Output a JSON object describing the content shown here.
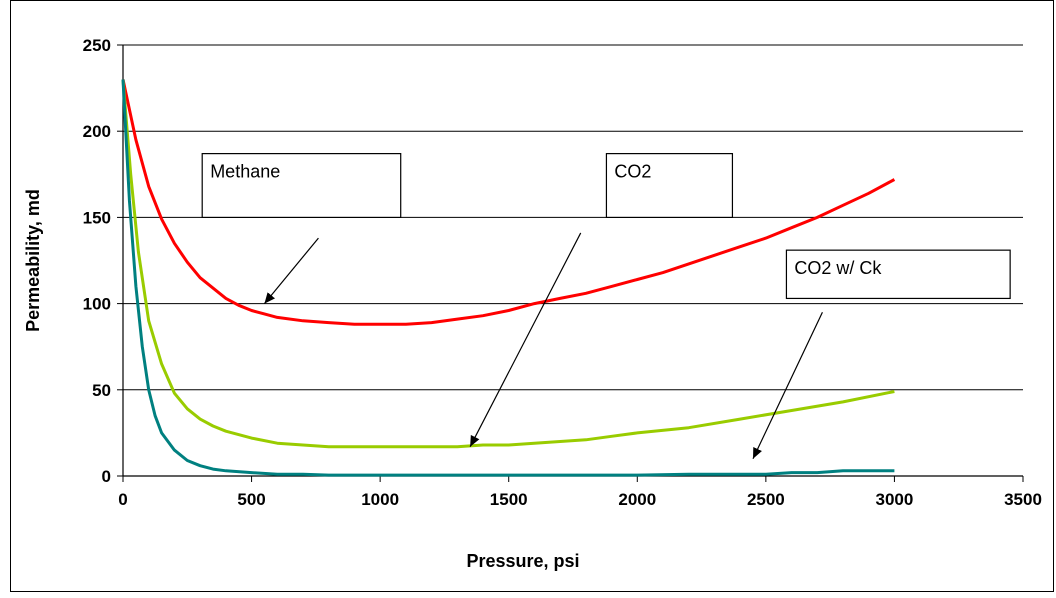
{
  "chart_data": {
    "type": "line",
    "title": "",
    "xlabel": "Pressure, psi",
    "ylabel": "Permeability, md",
    "xlim": [
      0,
      3500
    ],
    "ylim": [
      0,
      250
    ],
    "xticks": [
      0,
      500,
      1000,
      1500,
      2000,
      2500,
      3000,
      3500
    ],
    "yticks": [
      0,
      50,
      100,
      150,
      200,
      250
    ],
    "grid": "horizontal major gridlines",
    "legend": "none",
    "series": [
      {
        "name": "Methane",
        "color": "#ff0000",
        "x": [
          0,
          50,
          100,
          150,
          200,
          250,
          300,
          350,
          400,
          450,
          500,
          550,
          600,
          700,
          800,
          900,
          1000,
          1100,
          1200,
          1300,
          1400,
          1500,
          1600,
          1700,
          1800,
          1900,
          2000,
          2100,
          2200,
          2300,
          2400,
          2500,
          2600,
          2700,
          2800,
          2900,
          3000
        ],
        "y": [
          230,
          195,
          168,
          149,
          135,
          124,
          115,
          109,
          103,
          99,
          96,
          94,
          92,
          90,
          89,
          88,
          88,
          88,
          89,
          91,
          93,
          96,
          100,
          103,
          106,
          110,
          114,
          118,
          123,
          128,
          133,
          138,
          144,
          150,
          157,
          164,
          172
        ]
      },
      {
        "name": "CO2",
        "color": "#99cc00",
        "x": [
          0,
          30,
          60,
          100,
          150,
          200,
          250,
          300,
          350,
          400,
          500,
          600,
          700,
          800,
          900,
          1000,
          1100,
          1200,
          1300,
          1400,
          1500,
          1600,
          1700,
          1800,
          1900,
          2000,
          2200,
          2400,
          2600,
          2800,
          3000
        ],
        "y": [
          230,
          175,
          130,
          90,
          65,
          48,
          39,
          33,
          29,
          26,
          22,
          19,
          18,
          17,
          17,
          17,
          17,
          17,
          17,
          18,
          18,
          19,
          20,
          21,
          23,
          25,
          28,
          33,
          38,
          43,
          49
        ]
      },
      {
        "name": "CO2 w/ Ck",
        "color": "#008080",
        "x": [
          0,
          25,
          50,
          75,
          100,
          125,
          150,
          200,
          250,
          300,
          350,
          400,
          500,
          600,
          700,
          800,
          1000,
          1500,
          2000,
          2200,
          2500,
          2600,
          2700,
          2800,
          2900,
          3000
        ],
        "y": [
          230,
          160,
          110,
          75,
          50,
          35,
          25,
          15,
          9,
          6,
          4,
          3,
          2,
          1,
          1,
          0.5,
          0.5,
          0.5,
          0.5,
          1,
          1,
          2,
          2,
          3,
          3,
          3
        ]
      }
    ],
    "annotations": [
      {
        "text": "Methane",
        "box": {
          "x0": 308,
          "x1": 1080,
          "y0": 150,
          "y1": 187
        },
        "arrow_to": {
          "x": 550,
          "y": 100
        }
      },
      {
        "text": "CO2",
        "box": {
          "x0": 1880,
          "x1": 2370,
          "y0": 150,
          "y1": 187
        },
        "arrow_to": {
          "x": 1350,
          "y": 17
        }
      },
      {
        "text": "CO2 w/ Ck",
        "box": {
          "x0": 2580,
          "x1": 3450,
          "y0": 103,
          "y1": 131
        },
        "arrow_to": {
          "x": 2450,
          "y": 10
        }
      }
    ],
    "callout_arrow_origins": [
      {
        "x": 760,
        "y": 138
      },
      {
        "x": 1780,
        "y": 141
      },
      {
        "x": 2720,
        "y": 95
      }
    ]
  }
}
